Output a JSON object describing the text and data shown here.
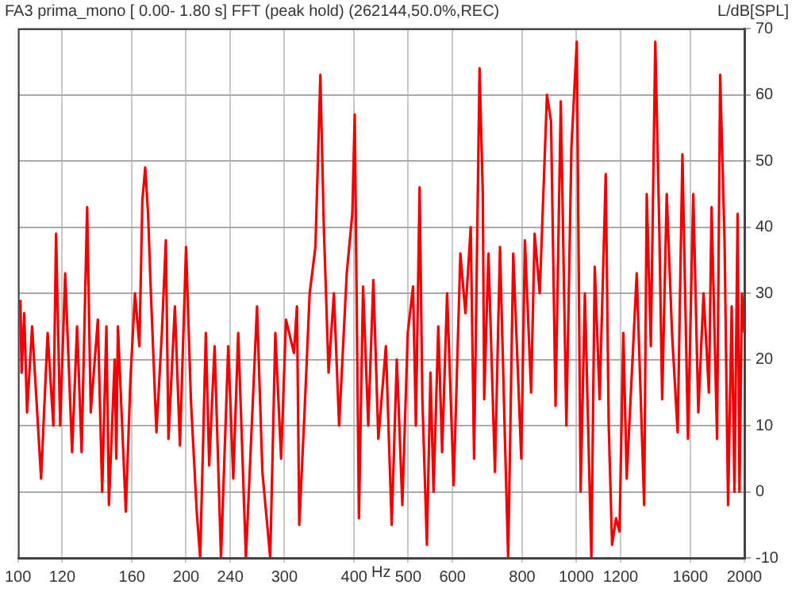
{
  "chart_data": {
    "type": "line",
    "title": "FA3 prima_mono [ 0.00- 1.80 s] FFT (peak hold) (262144,50.0%,REC)",
    "xlabel": "Hz",
    "ylabel": "L/dB[SPL]",
    "log": "x",
    "grid": true,
    "legend": false,
    "marker": "none",
    "line_style": "solid",
    "xlim": [
      100,
      2000
    ],
    "xticks": [
      100,
      120,
      160,
      200,
      240,
      300,
      400,
      500,
      600,
      800,
      1000,
      1200,
      1600,
      2000
    ],
    "ylim": [
      -10,
      70
    ],
    "yticks": [
      -10,
      0,
      10,
      20,
      30,
      40,
      50,
      60,
      70
    ],
    "series": [
      {
        "color": "#f00000",
        "x": [
          101,
          101.5,
          102.6,
          103.8,
          106,
          110,
          113,
          115.7,
          117,
          119,
          121.5,
          125,
          127.6,
          130,
          133,
          135,
          139,
          141.5,
          144,
          145.5,
          149,
          150,
          151,
          156,
          159,
          162,
          165,
          167,
          169,
          171,
          173,
          177,
          181,
          184,
          186,
          191,
          195,
          200,
          204,
          209,
          212,
          217,
          220,
          225,
          231,
          238,
          243,
          248,
          256,
          268,
          274,
          283,
          289,
          296,
          302,
          312,
          316,
          319,
          326,
          333,
          341,
          348,
          353,
          360,
          368,
          376,
          388,
          397,
          401,
          408,
          415,
          424,
          433,
          442,
          456,
          467,
          477,
          488,
          499,
          510,
          516,
          524,
          530,
          540,
          548,
          555,
          566,
          575,
          587,
          603,
          620,
          633,
          647,
          656,
          671,
          680,
          684,
          696,
          715,
          730,
          745,
          755,
          771,
          797,
          809,
          830,
          842,
          860,
          886,
          901,
          918,
          938,
          960,
          980,
          1002,
          1018,
          1036,
          1064,
          1079,
          1101,
          1129,
          1143,
          1159,
          1178,
          1195,
          1214,
          1231,
          1283,
          1323,
          1337,
          1360,
          1385,
          1408,
          1425,
          1452,
          1484,
          1519,
          1549,
          1585,
          1620,
          1654,
          1690,
          1728,
          1747,
          1787,
          1810,
          1843,
          1870,
          1898,
          1920,
          1945,
          1960,
          1980,
          2000
        ],
        "values": [
          29,
          18,
          27,
          12,
          25,
          2,
          24,
          10,
          39,
          10,
          33,
          6,
          25,
          6,
          43,
          12,
          26,
          0,
          25,
          -2,
          20,
          5,
          25,
          -3,
          17,
          30,
          22,
          44,
          49,
          42,
          30,
          9,
          24,
          38,
          8,
          28,
          7,
          37,
          14,
          -3,
          -10,
          24,
          4,
          22,
          -10,
          22,
          2,
          24,
          -10,
          28,
          3,
          -10,
          24,
          5,
          26,
          21,
          28,
          -5,
          12,
          30,
          37,
          63,
          40,
          18,
          30,
          10,
          33,
          42,
          57,
          -4,
          31,
          10,
          32,
          8,
          22,
          -5,
          20,
          -2,
          24,
          31,
          10,
          46,
          14,
          -8,
          18,
          0,
          25,
          6,
          30,
          1,
          36,
          27,
          40,
          5,
          64,
          45,
          14,
          36,
          3,
          37,
          8,
          -10,
          36,
          5,
          38,
          15,
          39,
          30,
          60,
          56,
          13,
          59,
          10,
          52,
          68,
          0,
          30,
          -10,
          34,
          14,
          48,
          10,
          -8,
          -4,
          -6,
          24,
          2,
          33,
          -2,
          45,
          22,
          68,
          40,
          14,
          45,
          24,
          9,
          51,
          8,
          45,
          12,
          30,
          15,
          43,
          8,
          63,
          38,
          -2,
          28,
          0,
          42,
          0,
          30,
          24
        ]
      }
    ]
  }
}
